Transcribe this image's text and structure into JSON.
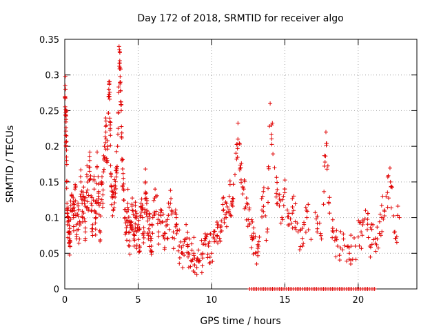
{
  "chart_data": {
    "type": "scatter",
    "title": "Day 172 of 2018, SRMTID for receiver algo",
    "xlabel": "GPS time / hours",
    "ylabel": "SRMTID / TECUs",
    "xlim": [
      0,
      24
    ],
    "ylim": [
      0,
      0.35
    ],
    "x_ticks": [
      0,
      5,
      10,
      15,
      20
    ],
    "x_tick_labels": [
      "0",
      "5",
      "10",
      "15",
      "20"
    ],
    "y_ticks": [
      0,
      0.05,
      0.1,
      0.15,
      0.2,
      0.25,
      0.3,
      0.35
    ],
    "y_tick_labels": [
      "0",
      "0.05",
      "0.1",
      "0.15",
      "0.2",
      "0.25",
      "0.3",
      "0.35"
    ],
    "grid": true,
    "marker": "+",
    "color": "#e00000",
    "series": [
      {
        "name": "SRMTID",
        "x": [
          0.02,
          0.05,
          0.08,
          0.1,
          0.12,
          0.15,
          0.2,
          0.25,
          0.3,
          0.35,
          0.4,
          0.5,
          0.6,
          0.7,
          0.8,
          0.9,
          1.0,
          1.1,
          1.2,
          1.3,
          1.4,
          1.5,
          1.6,
          1.7,
          1.8,
          1.9,
          2.0,
          2.1,
          2.2,
          2.3,
          2.4,
          2.5,
          2.6,
          2.7,
          2.8,
          2.9,
          3.0,
          3.05,
          3.1,
          3.15,
          3.2,
          3.3,
          3.4,
          3.5,
          3.6,
          3.7,
          3.75,
          3.8,
          3.85,
          3.9,
          4.0,
          4.1,
          4.2,
          4.3,
          4.4,
          4.5,
          4.6,
          4.7,
          4.8,
          4.9,
          5.0,
          5.1,
          5.2,
          5.3,
          5.4,
          5.5,
          5.6,
          5.7,
          5.8,
          5.9,
          6.0,
          6.2,
          6.4,
          6.6,
          6.8,
          7.0,
          7.2,
          7.4,
          7.6,
          7.8,
          8.0,
          8.2,
          8.4,
          8.6,
          8.8,
          9.0,
          9.2,
          9.4,
          9.6,
          9.8,
          10.0,
          10.2,
          10.4,
          10.6,
          10.8,
          11.0,
          11.2,
          11.4,
          11.6,
          11.8,
          12.0,
          12.2,
          12.4,
          12.6,
          12.8,
          13.0,
          13.2,
          13.5,
          13.8,
          14.0,
          14.3,
          14.5,
          14.8,
          15.0,
          15.3,
          15.6,
          15.9,
          16.2,
          16.5,
          17.2,
          17.5,
          17.8,
          18.0,
          18.3,
          18.6,
          19.0,
          19.4,
          19.8,
          20.2,
          20.5,
          20.8,
          21.0,
          21.3,
          21.6,
          21.9,
          22.2,
          22.5,
          22.8
        ],
        "y": [
          0.27,
          0.28,
          0.2,
          0.25,
          0.18,
          0.12,
          0.09,
          0.1,
          0.08,
          0.06,
          0.11,
          0.13,
          0.1,
          0.14,
          0.09,
          0.12,
          0.07,
          0.15,
          0.1,
          0.13,
          0.08,
          0.16,
          0.11,
          0.18,
          0.12,
          0.09,
          0.14,
          0.1,
          0.17,
          0.13,
          0.08,
          0.15,
          0.12,
          0.2,
          0.22,
          0.18,
          0.28,
          0.27,
          0.23,
          0.16,
          0.13,
          0.11,
          0.14,
          0.17,
          0.2,
          0.34,
          0.32,
          0.29,
          0.25,
          0.18,
          0.14,
          0.1,
          0.08,
          0.12,
          0.06,
          0.09,
          0.11,
          0.07,
          0.1,
          0.08,
          0.09,
          0.06,
          0.12,
          0.1,
          0.08,
          0.15,
          0.11,
          0.07,
          0.09,
          0.06,
          0.1,
          0.13,
          0.08,
          0.11,
          0.07,
          0.09,
          0.12,
          0.08,
          0.1,
          0.06,
          0.05,
          0.07,
          0.06,
          0.04,
          0.05,
          0.03,
          0.04,
          0.05,
          0.07,
          0.06,
          0.05,
          0.07,
          0.09,
          0.08,
          0.11,
          0.1,
          0.13,
          0.12,
          0.16,
          0.21,
          0.17,
          0.14,
          0.12,
          0.09,
          0.07,
          0.05,
          0.06,
          0.13,
          0.08,
          0.26,
          0.17,
          0.12,
          0.1,
          0.14,
          0.09,
          0.11,
          0.08,
          0.06,
          0.1,
          0.08,
          0.07,
          0.22,
          0.12,
          0.08,
          0.06,
          0.07,
          0.05,
          0.06,
          0.08,
          0.11,
          0.06,
          0.09,
          0.07,
          0.1,
          0.13,
          0.15,
          0.08,
          0.1
        ],
        "zero_band_hours": [
          12.6,
          21.2
        ]
      }
    ]
  }
}
